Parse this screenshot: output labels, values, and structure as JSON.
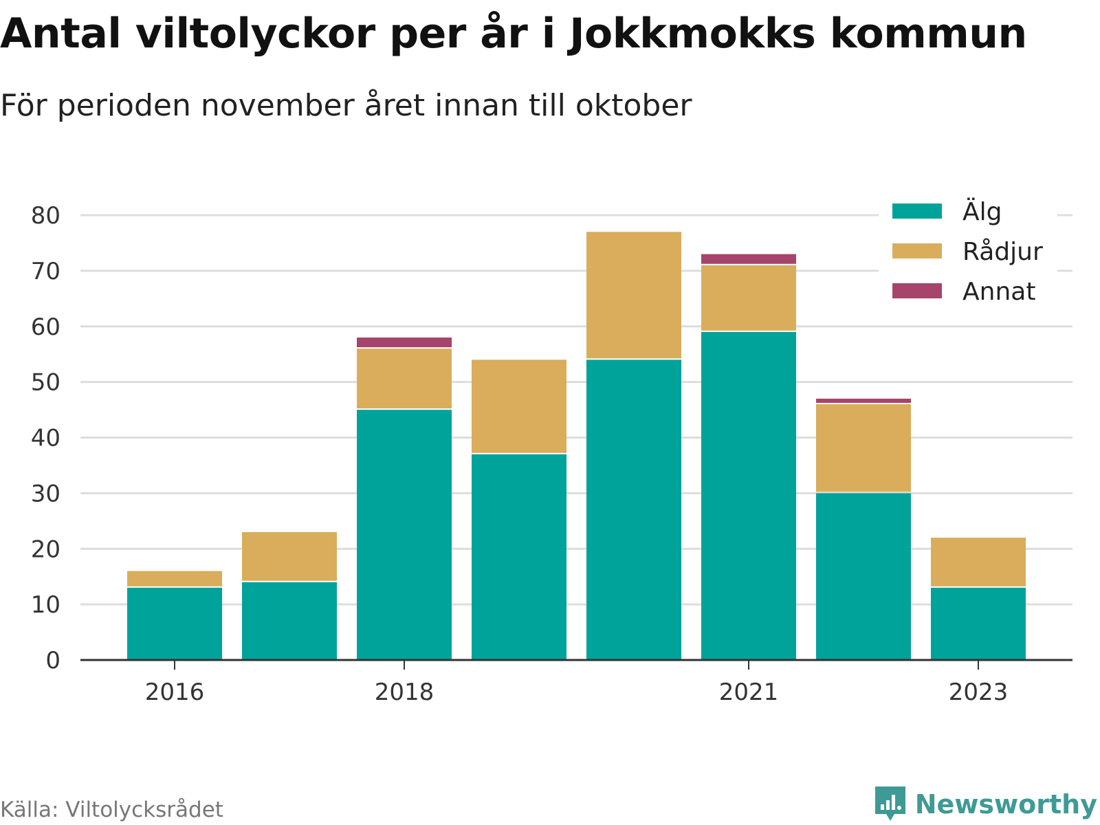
{
  "header": {
    "title": "Antal viltolyckor per år i Jokkmokks kommun",
    "subtitle": "För perioden november året innan till oktober"
  },
  "footer": {
    "source": "Källa: Viltolycksrådet",
    "brand": "Newsworthy",
    "brand_icon": "newsworthy-logo-icon"
  },
  "chart_data": {
    "type": "bar",
    "stacked": true,
    "categories": [
      "2016",
      "2017",
      "2018",
      "2019",
      "2020",
      "2021",
      "2022",
      "2023"
    ],
    "x_tick_labels": [
      "2016",
      "2018",
      "2021",
      "2023"
    ],
    "series": [
      {
        "name": "Älg",
        "color": "#00a39a",
        "values": [
          13,
          14,
          45,
          37,
          54,
          59,
          30,
          13
        ]
      },
      {
        "name": "Rådjur",
        "color": "#d9ad5b",
        "values": [
          3,
          9,
          11,
          17,
          23,
          12,
          16,
          9
        ]
      },
      {
        "name": "Annat",
        "color": "#a6446b",
        "values": [
          0,
          0,
          2,
          0,
          0,
          2,
          1,
          0
        ]
      }
    ],
    "ylim": [
      0,
      80
    ],
    "yticks": [
      0,
      10,
      20,
      30,
      40,
      50,
      60,
      70,
      80
    ],
    "grid": true,
    "legend": "top-right"
  }
}
